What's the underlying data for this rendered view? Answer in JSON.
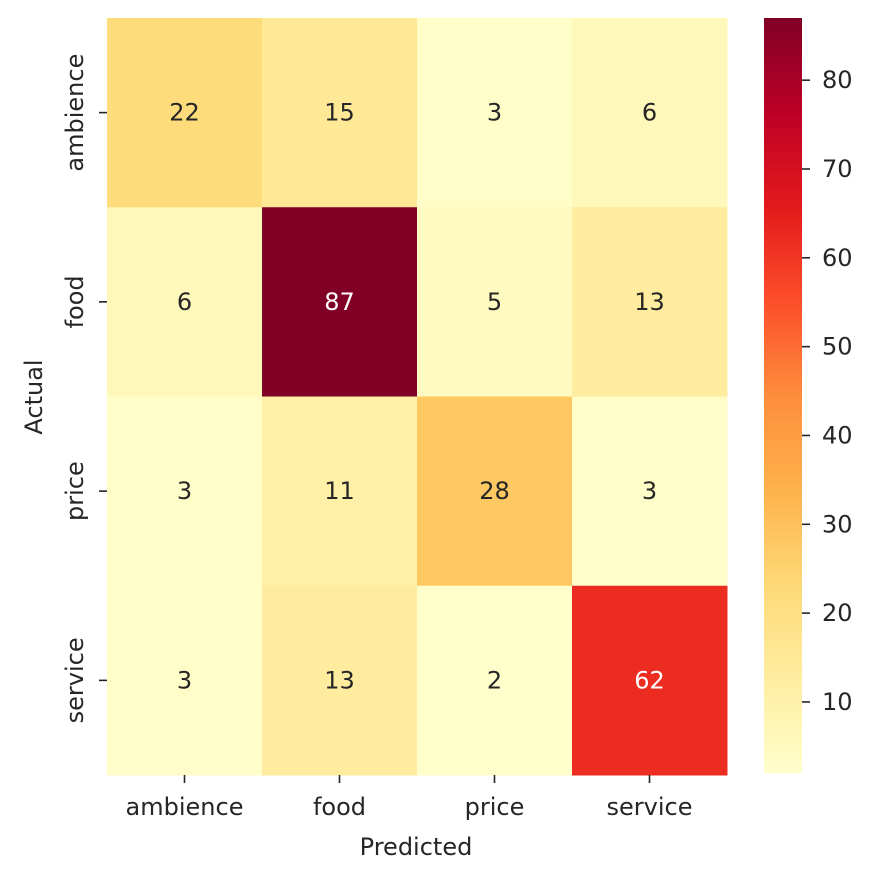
{
  "chart_data": {
    "type": "heatmap",
    "title": "",
    "xlabel": "Predicted",
    "ylabel": "Actual",
    "x_categories": [
      "ambience",
      "food",
      "price",
      "service"
    ],
    "y_categories": [
      "ambience",
      "food",
      "price",
      "service"
    ],
    "values": [
      [
        22,
        15,
        3,
        6
      ],
      [
        6,
        87,
        5,
        13
      ],
      [
        3,
        11,
        28,
        3
      ],
      [
        3,
        13,
        2,
        62
      ]
    ],
    "colormap": "YlOrRd",
    "colorbar": {
      "vmin": 2,
      "vmax": 87,
      "ticks": [
        10,
        20,
        30,
        40,
        50,
        60,
        70,
        80
      ]
    },
    "grid": false,
    "annotations": true
  },
  "colors": {
    "text_dark": "#262626",
    "text_light": "#ffffff"
  }
}
